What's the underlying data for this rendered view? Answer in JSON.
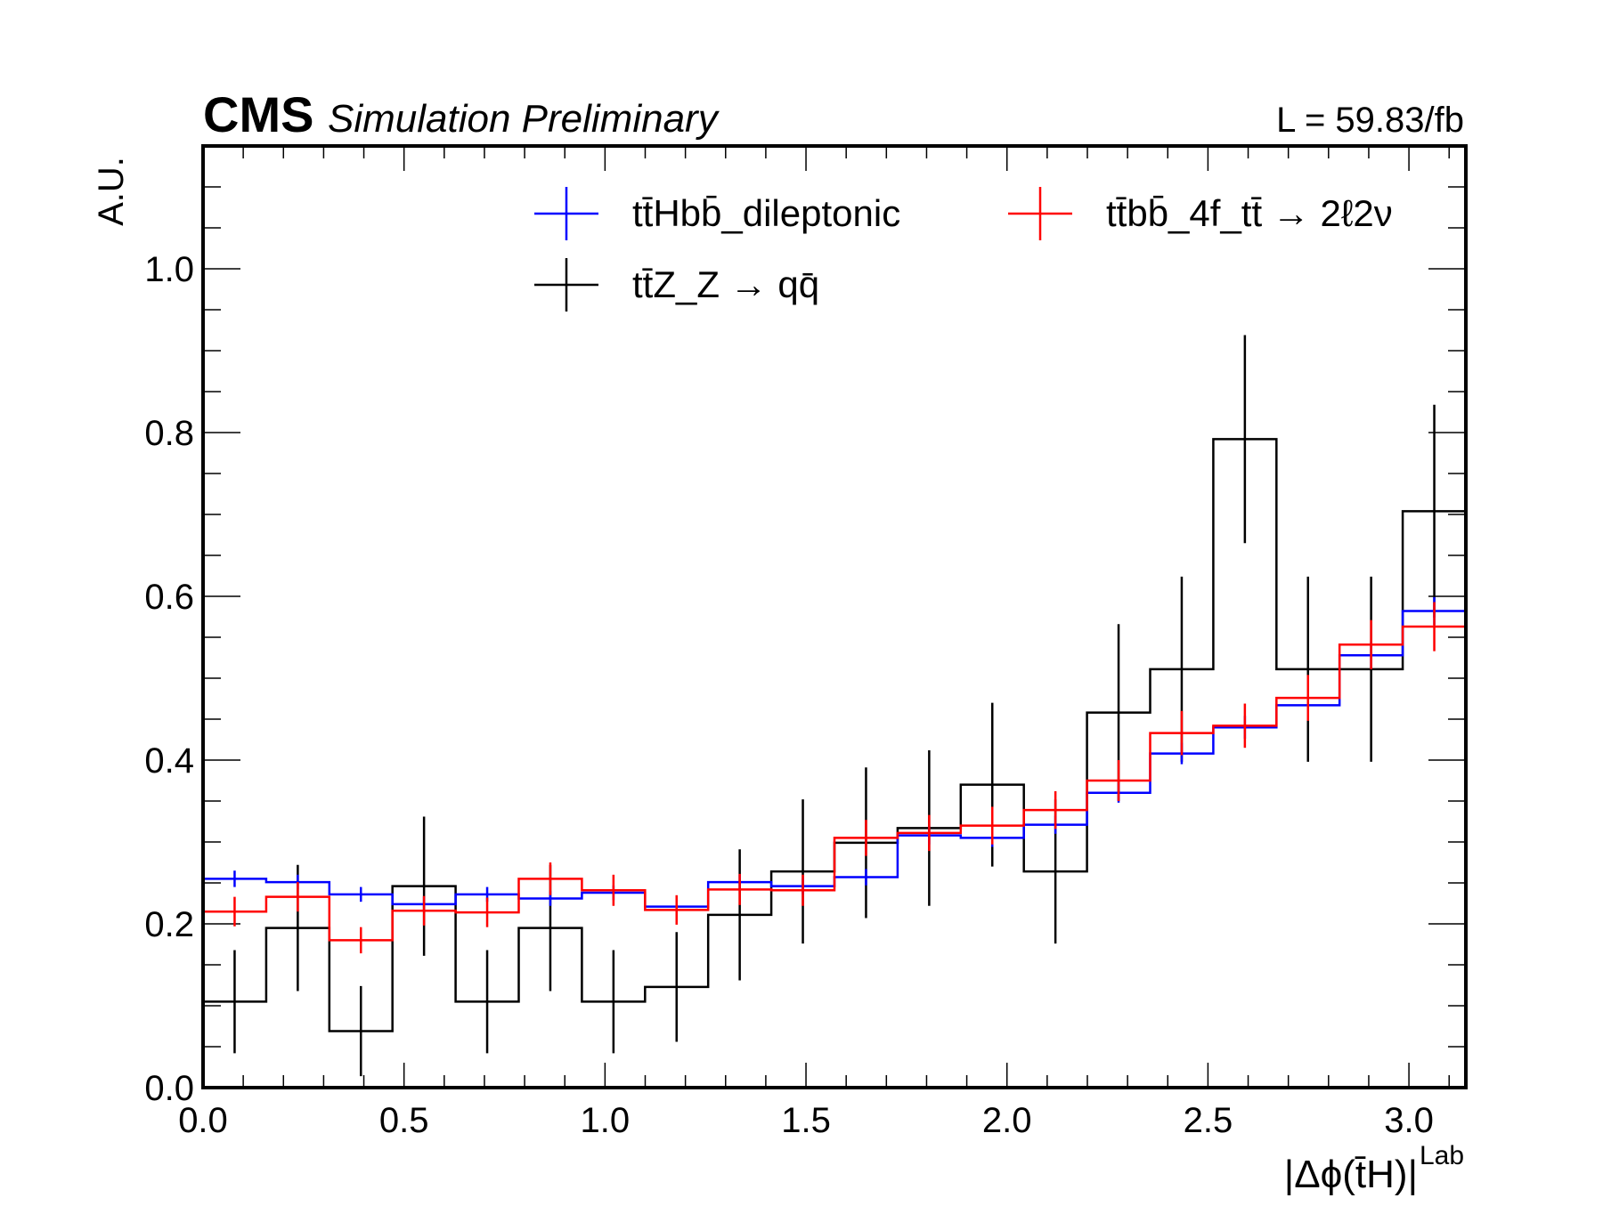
{
  "header": {
    "experiment": "CMS",
    "status": "Simulation Preliminary",
    "luminosity": "L = 59.83/fb"
  },
  "colors": {
    "tthbb": "#0000ff",
    "ttbb": "#ff0000",
    "ttz": "#000000"
  },
  "chart_data": {
    "type": "histogram",
    "xlabel": "|Δϕ(t̄H)|",
    "xlabel_superscript": "Lab",
    "ylabel": "A.U.",
    "xlim": [
      0,
      3.1416
    ],
    "ylim": [
      0,
      1.15
    ],
    "x_ticks": [
      "0.0",
      "0.5",
      "1.0",
      "1.5",
      "2.0",
      "2.5",
      "3.0"
    ],
    "y_ticks": [
      "0.0",
      "0.2",
      "0.4",
      "0.6",
      "0.8",
      "1.0"
    ],
    "bin_edges": [
      0.0,
      0.1571,
      0.3142,
      0.4712,
      0.6283,
      0.7854,
      0.9425,
      1.0996,
      1.2566,
      1.4137,
      1.5708,
      1.7279,
      1.885,
      2.042,
      2.1991,
      2.3562,
      2.5133,
      2.6704,
      2.8274,
      2.9845,
      3.1416
    ],
    "legend": {
      "placement": "top",
      "columns": 2
    },
    "series": [
      {
        "name": "tt̄Hbb̄_dileptonic",
        "color": "#0000ff",
        "values": [
          0.255,
          0.251,
          0.236,
          0.224,
          0.236,
          0.231,
          0.238,
          0.221,
          0.251,
          0.246,
          0.257,
          0.308,
          0.305,
          0.321,
          0.36,
          0.408,
          0.44,
          0.467,
          0.528,
          0.582
        ],
        "errors": [
          0.01,
          0.009,
          0.009,
          0.009,
          0.009,
          0.009,
          0.009,
          0.009,
          0.009,
          0.01,
          0.01,
          0.011,
          0.011,
          0.011,
          0.012,
          0.013,
          0.014,
          0.015,
          0.016,
          0.017
        ]
      },
      {
        "name": "tt̄bb̄_4f_tt̄ → 2ℓ2ν",
        "color": "#ff0000",
        "values": [
          0.215,
          0.233,
          0.18,
          0.216,
          0.214,
          0.255,
          0.241,
          0.217,
          0.242,
          0.241,
          0.305,
          0.311,
          0.32,
          0.339,
          0.375,
          0.433,
          0.442,
          0.476,
          0.541,
          0.563
        ],
        "errors": [
          0.018,
          0.018,
          0.016,
          0.018,
          0.018,
          0.02,
          0.019,
          0.018,
          0.019,
          0.019,
          0.022,
          0.022,
          0.023,
          0.023,
          0.025,
          0.027,
          0.027,
          0.028,
          0.03,
          0.03
        ]
      },
      {
        "name": "tt̄Z_Z → qq̄",
        "color": "#000000",
        "values": [
          0.105,
          0.195,
          0.069,
          0.246,
          0.105,
          0.195,
          0.105,
          0.123,
          0.211,
          0.264,
          0.299,
          0.317,
          0.37,
          0.264,
          0.458,
          0.511,
          0.792,
          0.511,
          0.511,
          0.704
        ],
        "errors": [
          0.063,
          0.077,
          0.055,
          0.085,
          0.063,
          0.077,
          0.063,
          0.067,
          0.08,
          0.088,
          0.092,
          0.095,
          0.1,
          0.088,
          0.108,
          0.113,
          0.127,
          0.113,
          0.113,
          0.13
        ]
      }
    ]
  }
}
